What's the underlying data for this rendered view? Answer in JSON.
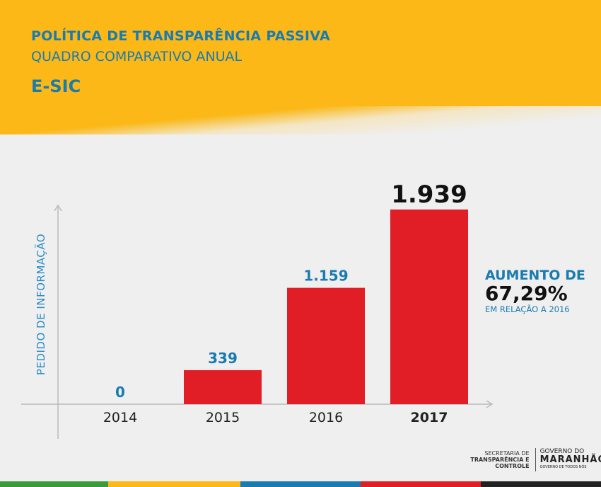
{
  "header": {
    "title": "POLÍTICA DE TRANSPARÊNCIA PASSIVA",
    "subtitle": "QUADRO COMPARATIVO ANUAL",
    "section": "E-SIC"
  },
  "note": {
    "line1": "AUMENTO DE",
    "value": "67,29%",
    "line3": "EM RELAÇÃO A 2016"
  },
  "footer": {
    "secretaria": "SECRETARIA DE",
    "secretaria_bold": "TRANSPARÊNCIA E CONTROLE",
    "gov1": "GOVERNO DO",
    "gov2": "MARANHÃO",
    "gov3": "GOVERNO DE TODOS NÓS"
  },
  "colors": {
    "bar": "#e11d25",
    "accent": "#1a7bb0",
    "header": "#fbb817"
  },
  "chart_data": {
    "type": "bar",
    "categories": [
      "2014",
      "2015",
      "2016",
      "2017"
    ],
    "values": [
      0,
      339,
      1159,
      1939
    ],
    "value_labels": [
      "0",
      "339",
      "1.159",
      "1.939"
    ],
    "ylabel": "PEDIDO DE INFORMAÇÃO",
    "xlabel": "",
    "ylim": [
      0,
      2100
    ],
    "grid": false
  }
}
